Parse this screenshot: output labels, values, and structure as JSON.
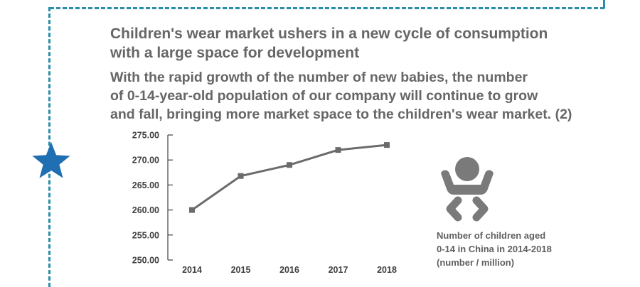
{
  "header": {
    "title_line1": "Children's wear market ushers in a new cycle of consumption",
    "title_line2": "with a large space for development",
    "subtitle_line1": "With the rapid growth of the number of new babies, the number",
    "subtitle_line2": "of 0-14-year-old population of our company will continue to grow",
    "subtitle_line3": "and fall, bringing more market space to the children's wear market. (2)"
  },
  "caption": {
    "line1": "Number of children aged",
    "line2": "0-14 in China in 2014-2018",
    "line3": "(number / million)"
  },
  "icons": {
    "decoration": "star-icon",
    "illustration": "baby-icon"
  },
  "colors": {
    "frame": "#2a8ea8",
    "star": "#1f6fb2",
    "line": "#6b6b6b",
    "icon": "#7a7a7a"
  },
  "chart_data": {
    "type": "line",
    "categories": [
      "2014",
      "2015",
      "2016",
      "2017",
      "2018"
    ],
    "series": [
      {
        "values": [
          260.0,
          266.8,
          269.0,
          272.0,
          273.0
        ]
      }
    ],
    "y_ticks": [
      "275.00",
      "270.00",
      "265.00",
      "260.00",
      "255.00",
      "250.00"
    ],
    "ylim": [
      250,
      275
    ],
    "grid": false,
    "legend": "none",
    "title": "",
    "xlabel": "",
    "ylabel": ""
  }
}
